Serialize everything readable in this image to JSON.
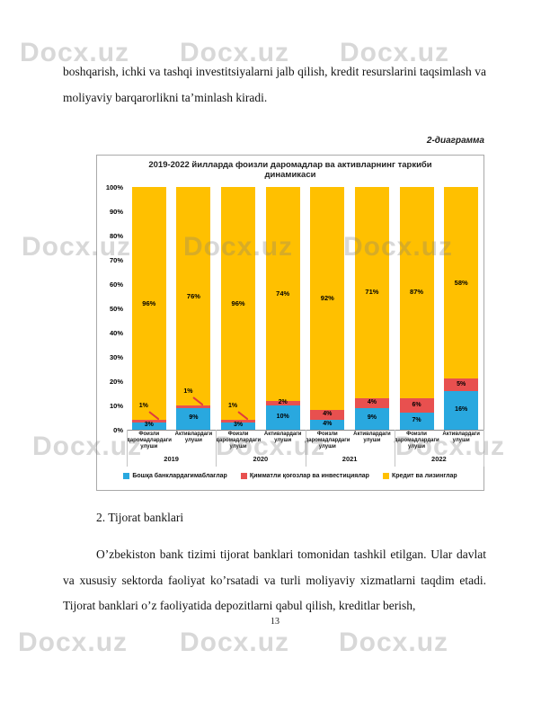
{
  "page": {
    "top_paragraph": "boshqarish, ichki va tashqi investitsiyalarni jalb qilish, kredit resurslarini taqsimlash va moliyaviy barqarorlikni ta’minlash kiradi.",
    "figure_caption": "2-диаграмма",
    "section_heading": "2. Tijorat banklari",
    "body_paragraph": "O’zbekiston bank tizimi tijorat banklari tomonidan tashkil etilgan. Ular davlat va xususiy sektorda faoliyat ko’rsatadi va turli moliyaviy xizmatlarni taqdim etadi. Tijorat banklari o’z faoliyatida depozitlarni qabul qilish, kreditlar berish,",
    "page_number": "13",
    "watermark_text": "Docx.uz"
  },
  "chart_data": {
    "type": "bar",
    "stacked": true,
    "title": "2019-2022 йилларда фоизли даромадлар ва активларнинг таркиби динамикаси",
    "title_lines": [
      "2019-2022 йилларда фоизли даромадлар ва активларнинг таркиби",
      "динамикаси"
    ],
    "y_axis": {
      "min": 0,
      "max": 100,
      "tick_step": 10,
      "grid": false,
      "tick_labels": [
        "100%",
        "90%",
        "80%",
        "70%",
        "60%",
        "50%",
        "40%",
        "30%",
        "20%",
        "10%",
        "0%"
      ]
    },
    "colors": {
      "blue": "#29a8df",
      "red": "#e8504f",
      "yellow": "#ffc000"
    },
    "legend_position": "bottom",
    "legend": [
      {
        "name": "Бошқа банклардагимаблағлар",
        "color": "#29a8df"
      },
      {
        "name": "Қимматли қоғозлар ва инвестициялар",
        "color": "#e8504f"
      },
      {
        "name": "Кредит ва лизинглар",
        "color": "#ffc000"
      }
    ],
    "series": [
      {
        "name": "Бошқа банклардагимаблағлар",
        "values": [
          3,
          9,
          3,
          10,
          4,
          9,
          7,
          16
        ]
      },
      {
        "name": "Қимматли қоғозлар ва инвестициялар",
        "values": [
          1,
          1,
          1,
          2,
          4,
          4,
          6,
          5
        ]
      },
      {
        "name": "Кредит ва лизинглар",
        "values": [
          96,
          76,
          96,
          74,
          92,
          71,
          87,
          58
        ]
      }
    ],
    "groups": [
      {
        "year": "2019",
        "bars": [
          {
            "label": "Фоизли даромадлардаги улуши",
            "blue": 3,
            "red": 1,
            "yellow": 96,
            "red_callout": true
          },
          {
            "label": "Активлардаги улуши",
            "blue": 9,
            "red": 1,
            "yellow": 76,
            "red_callout": true
          }
        ]
      },
      {
        "year": "2020",
        "bars": [
          {
            "label": "Фоизли даромадлардаги улуши",
            "blue": 3,
            "red": 1,
            "yellow": 96,
            "red_callout": true
          },
          {
            "label": "Активлардаги улуши",
            "blue": 10,
            "red": 2,
            "yellow": 74,
            "red_callout": false
          }
        ]
      },
      {
        "year": "2021",
        "bars": [
          {
            "label": "Фоизли даромадлардаги улуши",
            "blue": 4,
            "red": 4,
            "yellow": 92,
            "red_callout": false
          },
          {
            "label": "Активлардаги улуши",
            "blue": 9,
            "red": 4,
            "yellow": 71,
            "red_callout": false
          }
        ]
      },
      {
        "year": "2022",
        "bars": [
          {
            "label": "Фоизли даромадлардаги улуши",
            "blue": 7,
            "red": 6,
            "yellow": 87,
            "red_callout": false
          },
          {
            "label": "Активлардаги улуши",
            "blue": 16,
            "red": 5,
            "yellow": 58,
            "red_callout": false
          }
        ]
      }
    ]
  }
}
